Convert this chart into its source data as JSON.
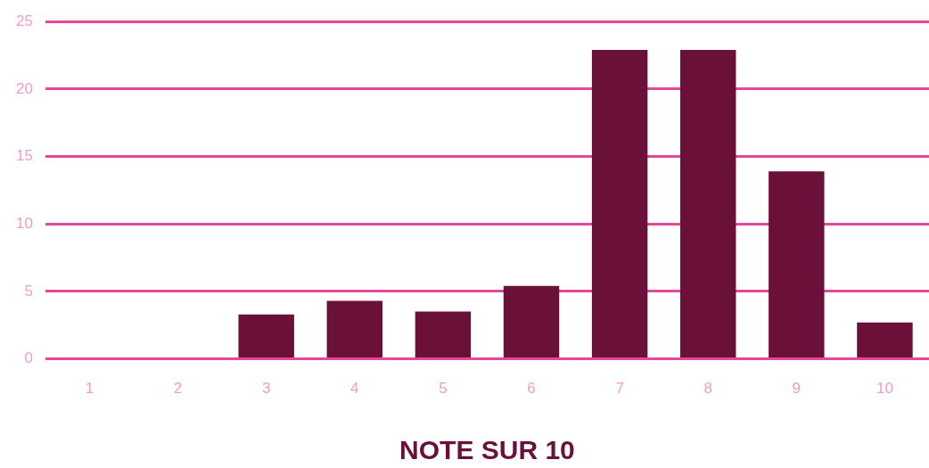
{
  "chart_data": {
    "type": "bar",
    "xlabel": "NOTE SUR 10",
    "categories": [
      "1",
      "2",
      "3",
      "4",
      "5",
      "6",
      "7",
      "8",
      "9",
      "10"
    ],
    "values": [
      0,
      0,
      3.3,
      4.3,
      3.5,
      5.4,
      22.9,
      22.9,
      13.9,
      2.7
    ],
    "color": "#6a1039",
    "ylim": [
      0,
      25
    ],
    "yticks": [
      0,
      5,
      10,
      15,
      20,
      25
    ],
    "grid": "y"
  }
}
